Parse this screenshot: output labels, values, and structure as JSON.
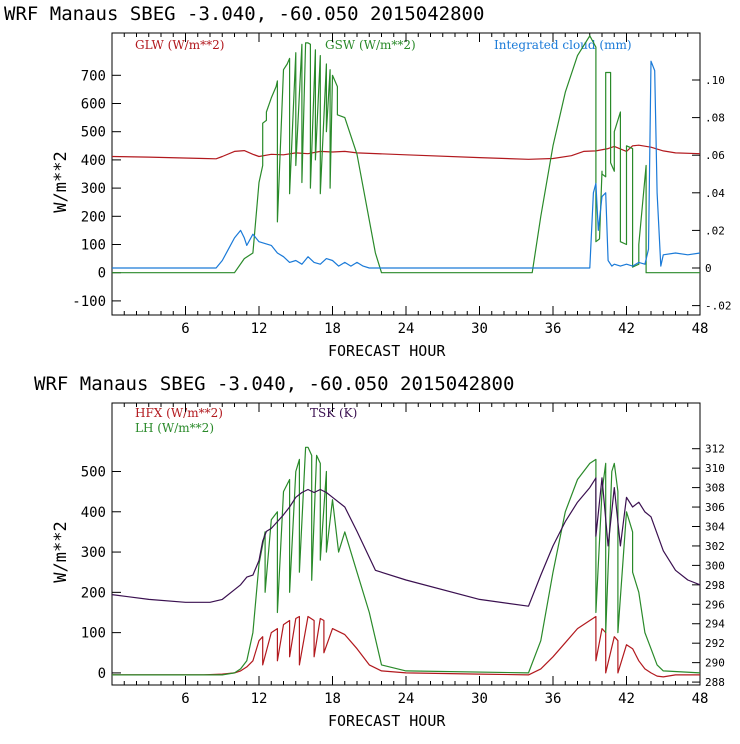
{
  "colors": {
    "glw": "#b2191e",
    "gsw": "#2a8a2a",
    "cloud": "#1a7ad8",
    "hfx": "#b2191e",
    "lh": "#2a8a2a",
    "tsk": "#3a1050",
    "axis": "#000000"
  },
  "chart_data": [
    {
      "type": "line",
      "header": "WRF   Manaus SBEG   -3.040, -60.050  2015042800",
      "xlabel": "FORECAST HOUR",
      "ylabel": "W/m**2",
      "xlim": [
        0,
        48
      ],
      "ylim": [
        -150,
        850
      ],
      "y2lim": [
        -0.025,
        0.125
      ],
      "x_ticks": [
        "6",
        "12",
        "18",
        "24",
        "30",
        "36",
        "42",
        "48"
      ],
      "y_ticks": [
        "-100",
        "0",
        "100",
        "200",
        "300",
        "400",
        "500",
        "600",
        "700"
      ],
      "y2_ticks": [
        ".10",
        ".08",
        ".06",
        ".04",
        ".02",
        "0",
        "-.02"
      ],
      "series": [
        {
          "name": "GLW (W/m**2)",
          "axis": "left",
          "x": [
            0,
            3,
            7.5,
            8.5,
            9,
            10,
            10.8,
            11.5,
            12,
            13,
            14,
            15,
            16,
            17,
            18,
            19,
            20,
            24,
            30,
            34,
            36,
            37.5,
            38.5,
            39.5,
            40.5,
            41,
            42,
            42.5,
            43,
            44,
            45,
            46,
            48
          ],
          "y": [
            412,
            410,
            405,
            404,
            412,
            430,
            433,
            420,
            412,
            420,
            418,
            425,
            422,
            430,
            428,
            430,
            425,
            418,
            408,
            402,
            405,
            415,
            430,
            432,
            440,
            448,
            430,
            450,
            452,
            445,
            432,
            425,
            422
          ]
        },
        {
          "name": "GSW (W/m**2)",
          "axis": "left",
          "x": [
            0,
            10,
            10.8,
            11.5,
            12,
            12.3,
            12.3,
            12.6,
            12.6,
            13,
            13.4,
            13.5,
            13.5,
            14,
            14.3,
            14.5,
            14.5,
            15,
            15,
            15.5,
            15.5,
            15.8,
            16,
            16.2,
            16.2,
            16.6,
            16.6,
            17,
            17,
            17.5,
            17.5,
            17.8,
            17.8,
            18,
            18.4,
            18.4,
            19,
            20,
            21.5,
            22,
            34.3,
            35,
            36,
            37,
            38,
            39,
            39.5,
            39.5,
            39.8,
            40,
            40,
            40.3,
            40.3,
            40.7,
            40.7,
            41,
            41,
            41.5,
            41.5,
            42,
            42,
            42.5,
            42.5,
            43,
            43,
            43.6,
            43.6,
            48
          ],
          "y": [
            0,
            0,
            50,
            70,
            320,
            380,
            530,
            540,
            570,
            620,
            660,
            680,
            180,
            720,
            740,
            760,
            280,
            780,
            380,
            810,
            320,
            815,
            815,
            810,
            300,
            790,
            400,
            770,
            280,
            740,
            500,
            720,
            300,
            700,
            660,
            560,
            550,
            420,
            70,
            0,
            0,
            200,
            450,
            640,
            770,
            840,
            800,
            110,
            120,
            360,
            350,
            340,
            710,
            710,
            390,
            360,
            500,
            570,
            110,
            100,
            450,
            440,
            20,
            30,
            100,
            380,
            0,
            0
          ]
        },
        {
          "name": "Integrated cloud (mm)",
          "axis": "right",
          "x": [
            0,
            8.5,
            9,
            9.5,
            10,
            10.5,
            10.8,
            11,
            11.5,
            12,
            12.5,
            13,
            13.5,
            14,
            14.5,
            15,
            15.5,
            16,
            16.5,
            17,
            17.5,
            18,
            18.5,
            19,
            19.5,
            20,
            20.5,
            21,
            39,
            39.3,
            39.5,
            39.7,
            40,
            40.3,
            40.5,
            40.8,
            41,
            41.5,
            42,
            42.5,
            43,
            43.5,
            43.8,
            44,
            44.3,
            44.5,
            44.8,
            45,
            46,
            47,
            48
          ],
          "y": [
            0,
            0,
            0.004,
            0.01,
            0.016,
            0.02,
            0.016,
            0.012,
            0.018,
            0.014,
            0.013,
            0.012,
            0.008,
            0.006,
            0.003,
            0.004,
            0.002,
            0.006,
            0.003,
            0.002,
            0.005,
            0.004,
            0.001,
            0.003,
            0.001,
            0.003,
            0.001,
            0,
            0,
            0.04,
            0.045,
            0.02,
            0.038,
            0.04,
            0.004,
            0.001,
            0.002,
            0.001,
            0.002,
            0.001,
            0.003,
            0.002,
            0.01,
            0.11,
            0.105,
            0.04,
            0.001,
            0.007,
            0.008,
            0.007,
            0.008
          ]
        }
      ]
    },
    {
      "type": "line",
      "header": "WRF   Manaus SBEG   -3.040, -60.050  2015042800",
      "xlabel": "FORECAST HOUR",
      "ylabel": "W/m**2",
      "xlim": [
        0,
        48
      ],
      "ylim": [
        -30,
        670
      ],
      "y2lim": [
        287.7,
        316.7
      ],
      "x_ticks": [
        "6",
        "12",
        "18",
        "24",
        "30",
        "36",
        "42",
        "48"
      ],
      "y_ticks": [
        "0",
        "100",
        "200",
        "300",
        "400",
        "500"
      ],
      "y2_ticks": [
        "288",
        "290",
        "292",
        "294",
        "296",
        "298",
        "300",
        "302",
        "304",
        "306",
        "308",
        "310",
        "312"
      ],
      "series": [
        {
          "name": "HFX (W/m**2)",
          "axis": "left",
          "x": [
            0,
            7.5,
            9,
            10,
            10.5,
            11,
            11.5,
            12,
            12.3,
            12.3,
            13,
            13.5,
            13.5,
            14,
            14.5,
            14.5,
            15,
            15.3,
            15.3,
            16,
            16.5,
            16.5,
            17,
            17.3,
            17.3,
            18,
            19,
            20,
            21,
            22,
            24,
            30,
            34,
            35,
            36,
            37,
            38,
            39,
            39.5,
            39.5,
            40,
            40.3,
            40.3,
            41,
            41.3,
            41.3,
            42,
            42.5,
            43,
            43.5,
            44,
            44.5,
            45,
            46,
            48
          ],
          "y": [
            -5,
            -5,
            -3,
            0,
            5,
            15,
            30,
            80,
            90,
            20,
            100,
            110,
            30,
            120,
            130,
            40,
            135,
            140,
            20,
            140,
            130,
            40,
            135,
            130,
            50,
            110,
            95,
            60,
            20,
            5,
            0,
            -3,
            -5,
            10,
            40,
            75,
            110,
            130,
            140,
            30,
            110,
            100,
            0,
            90,
            80,
            0,
            70,
            60,
            30,
            10,
            0,
            -8,
            -10,
            -5,
            -5
          ]
        },
        {
          "name": "LH  (W/m**2)",
          "axis": "left",
          "x": [
            0,
            9,
            10,
            10.5,
            11,
            11.5,
            12,
            12.5,
            12.5,
            13,
            13.5,
            13.5,
            14,
            14.5,
            14.5,
            15,
            15.3,
            15.3,
            15.8,
            16,
            16.3,
            16.3,
            16.7,
            17,
            17,
            17.5,
            17.5,
            18,
            18.5,
            19,
            20,
            21,
            22,
            24,
            34,
            35,
            36,
            37,
            38,
            39,
            39.5,
            39.5,
            40,
            40.3,
            40.3,
            40.8,
            41,
            41.3,
            41.3,
            42,
            42.5,
            42.5,
            43,
            43.5,
            44,
            44.5,
            45,
            48
          ],
          "y": [
            -5,
            -5,
            0,
            10,
            30,
            100,
            270,
            350,
            200,
            380,
            400,
            150,
            450,
            480,
            200,
            500,
            530,
            250,
            560,
            560,
            540,
            230,
            540,
            520,
            280,
            500,
            300,
            430,
            300,
            350,
            250,
            150,
            20,
            5,
            0,
            80,
            250,
            400,
            480,
            520,
            530,
            150,
            450,
            520,
            100,
            500,
            520,
            450,
            100,
            400,
            350,
            250,
            200,
            100,
            60,
            20,
            5,
            0
          ]
        },
        {
          "name": "TSK (K)",
          "axis": "right",
          "x": [
            0,
            3,
            6,
            8,
            9,
            10,
            10.5,
            11,
            11.5,
            12,
            12.3,
            12.6,
            13,
            13.5,
            14,
            14.5,
            15,
            15.5,
            16,
            16.5,
            17,
            17.5,
            18,
            19,
            20,
            21.5,
            24,
            30,
            34,
            35,
            36,
            37,
            38,
            39,
            39.5,
            39.5,
            40,
            40.5,
            41,
            41.5,
            42,
            42.5,
            43,
            43.5,
            44,
            45,
            46,
            47,
            48
          ],
          "y": [
            297.0,
            296.5,
            296.2,
            296.2,
            296.5,
            297.5,
            298.0,
            298.8,
            299.0,
            300.5,
            302.5,
            303.5,
            303.8,
            304.5,
            305.2,
            306.0,
            307.0,
            307.5,
            307.8,
            307.5,
            307.8,
            307.5,
            307.0,
            306.0,
            303.5,
            299.5,
            298.5,
            296.5,
            295.8,
            299.0,
            302.0,
            304.5,
            306.5,
            308.0,
            309.0,
            303.0,
            309.0,
            302.0,
            308.0,
            302.0,
            307.0,
            306.0,
            306.5,
            305.5,
            305.0,
            301.5,
            299.5,
            298.5,
            298.0
          ]
        }
      ]
    }
  ]
}
